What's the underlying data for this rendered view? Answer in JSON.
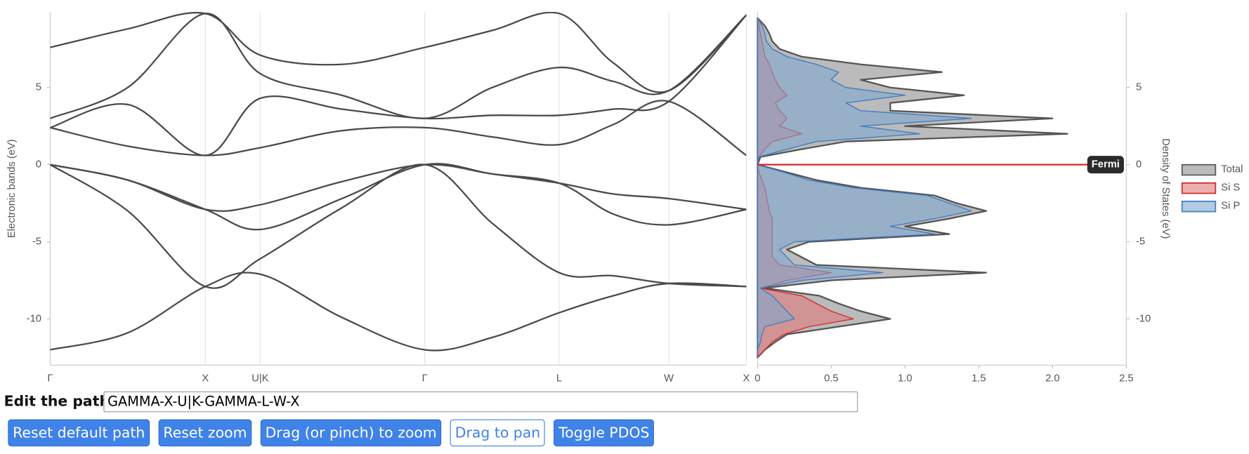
{
  "chart_data": [
    {
      "type": "line",
      "y_label": "Electronic bands (eV)",
      "color": "#4a4a4a",
      "x": [
        0,
        0.5,
        1,
        1.354,
        1.88,
        2.415,
        2.85,
        3.281,
        3.63,
        3.988,
        4.488
      ],
      "series": [
        {
          "values": [
            -12,
            -10.9,
            -7.9,
            -7.1,
            -9.9,
            -12,
            -11.2,
            -9.6,
            -8.5,
            -7.7,
            -7.9
          ]
        },
        {
          "values": [
            0,
            -3.0,
            -7.9,
            -6.1,
            -2.8,
            0,
            -3.8,
            -7.0,
            -7.2,
            -7.7,
            -7.9
          ]
        },
        {
          "values": [
            0,
            -1.0,
            -2.9,
            -4.2,
            -2.2,
            0,
            -0.6,
            -1.2,
            -3.2,
            -3.9,
            -2.9
          ]
        },
        {
          "values": [
            0,
            -1.0,
            -2.9,
            -2.6,
            -1.1,
            0,
            -0.6,
            -1.2,
            -1.9,
            -2.2,
            -2.9
          ]
        },
        {
          "values": [
            2.4,
            1.2,
            0.6,
            1.1,
            2.2,
            2.4,
            1.8,
            1.3,
            2.6,
            4.1,
            0.6
          ]
        },
        {
          "values": [
            2.4,
            3.9,
            0.6,
            4.3,
            3.6,
            3.0,
            3.2,
            3.2,
            3.6,
            4.1,
            9.7
          ]
        },
        {
          "values": [
            3.0,
            5.0,
            9.8,
            5.9,
            4.5,
            3.0,
            5.0,
            6.3,
            5.4,
            4.8,
            9.7
          ]
        },
        {
          "values": [
            7.6,
            8.8,
            9.8,
            7.1,
            6.5,
            7.6,
            8.7,
            9.8,
            6.6,
            4.8,
            9.7
          ]
        }
      ],
      "xlim": [
        0,
        4.488
      ],
      "xticks": [
        {
          "value": 0,
          "label": "Γ"
        },
        {
          "value": 1,
          "label": "X"
        },
        {
          "value": 1.354,
          "label": "U|K"
        },
        {
          "value": 2.415,
          "label": "Γ"
        },
        {
          "value": 3.281,
          "label": "L"
        },
        {
          "value": 3.988,
          "label": "W"
        },
        {
          "value": 4.488,
          "label": "X"
        }
      ],
      "ylim": [
        -13,
        9.9
      ],
      "yticks": [
        -10,
        -5,
        0,
        5
      ],
      "grid": true
    },
    {
      "type": "area",
      "y_label": "Density of States (eV)",
      "annotation": "Fermi",
      "fermi_level": 0,
      "fermi_color": "#d62728",
      "y": [
        -12.5,
        -12,
        -11.5,
        -11,
        -10.5,
        -10,
        -9.5,
        -9,
        -8.5,
        -8,
        -7.5,
        -7,
        -6.5,
        -6,
        -5.5,
        -5,
        -4.5,
        -4,
        -3.5,
        -3,
        -2.5,
        -2,
        -1.5,
        -1,
        -0.5,
        0,
        0.5,
        1,
        1.5,
        2,
        2.5,
        3,
        3.5,
        4,
        4.5,
        5,
        5.5,
        6,
        6.5,
        7,
        7.5,
        8,
        8.5,
        9,
        9.5
      ],
      "series": [
        {
          "name": "Total",
          "color": "#bbbbbb",
          "line_color": "#555555",
          "values": [
            0,
            0.05,
            0.12,
            0.2,
            0.55,
            0.9,
            0.7,
            0.55,
            0.42,
            0.05,
            0.5,
            1.55,
            0.4,
            0.3,
            0.2,
            0.35,
            1.3,
            1.0,
            1.3,
            1.55,
            1.35,
            1.2,
            0.7,
            0.4,
            0.2,
            0,
            0.02,
            0.3,
            0.6,
            2.1,
            1.0,
            2.0,
            0.9,
            0.9,
            1.4,
            0.9,
            0.7,
            1.25,
            0.7,
            0.3,
            0.15,
            0.1,
            0.08,
            0.05,
            0
          ]
        },
        {
          "name": "Si S",
          "color": "#e07a7a",
          "line_color": "#d62728",
          "values": [
            0,
            0.05,
            0.1,
            0.18,
            0.35,
            0.65,
            0.5,
            0.4,
            0.3,
            0.02,
            0.2,
            0.5,
            0.15,
            0.1,
            0.1,
            0.1,
            0.1,
            0.1,
            0.1,
            0.08,
            0.07,
            0.06,
            0.05,
            0.03,
            0.01,
            0,
            0.01,
            0.05,
            0.1,
            0.3,
            0.15,
            0.2,
            0.15,
            0.12,
            0.2,
            0.15,
            0.12,
            0.1,
            0.08,
            0.05,
            0.04,
            0.03,
            0.02,
            0.01,
            0
          ]
        },
        {
          "name": "Si P",
          "color": "#7ea6cf",
          "line_color": "#3f7cc0",
          "values": [
            0,
            0,
            0.02,
            0.03,
            0.05,
            0.25,
            0.2,
            0.15,
            0.1,
            0.02,
            0.3,
            0.85,
            0.25,
            0.2,
            0.15,
            0.25,
            1.2,
            0.9,
            1.2,
            1.45,
            1.3,
            1.15,
            0.65,
            0.35,
            0.18,
            0,
            0.01,
            0.2,
            0.4,
            1.1,
            0.7,
            1.45,
            0.7,
            0.6,
            1.0,
            0.6,
            0.5,
            0.55,
            0.4,
            0.2,
            0.1,
            0.06,
            0.05,
            0.03,
            0
          ]
        }
      ],
      "xlim": [
        0,
        2.5
      ],
      "xticks": [
        0,
        0.5,
        {
          "value": 1,
          "label": "1.0"
        },
        1.5,
        {
          "value": 2,
          "label": "2.0"
        },
        2.5
      ],
      "ylim": [
        -13,
        9.9
      ],
      "yticks": [
        -10,
        -5,
        0,
        5
      ]
    }
  ],
  "controls": {
    "path_label": "Edit the path:",
    "path_value": "GAMMA-X-U|K-GAMMA-L-W-X",
    "buttons": [
      "Reset default path",
      "Reset zoom",
      "Drag (or pinch) to zoom",
      "Drag to pan",
      "Toggle PDOS"
    ]
  }
}
